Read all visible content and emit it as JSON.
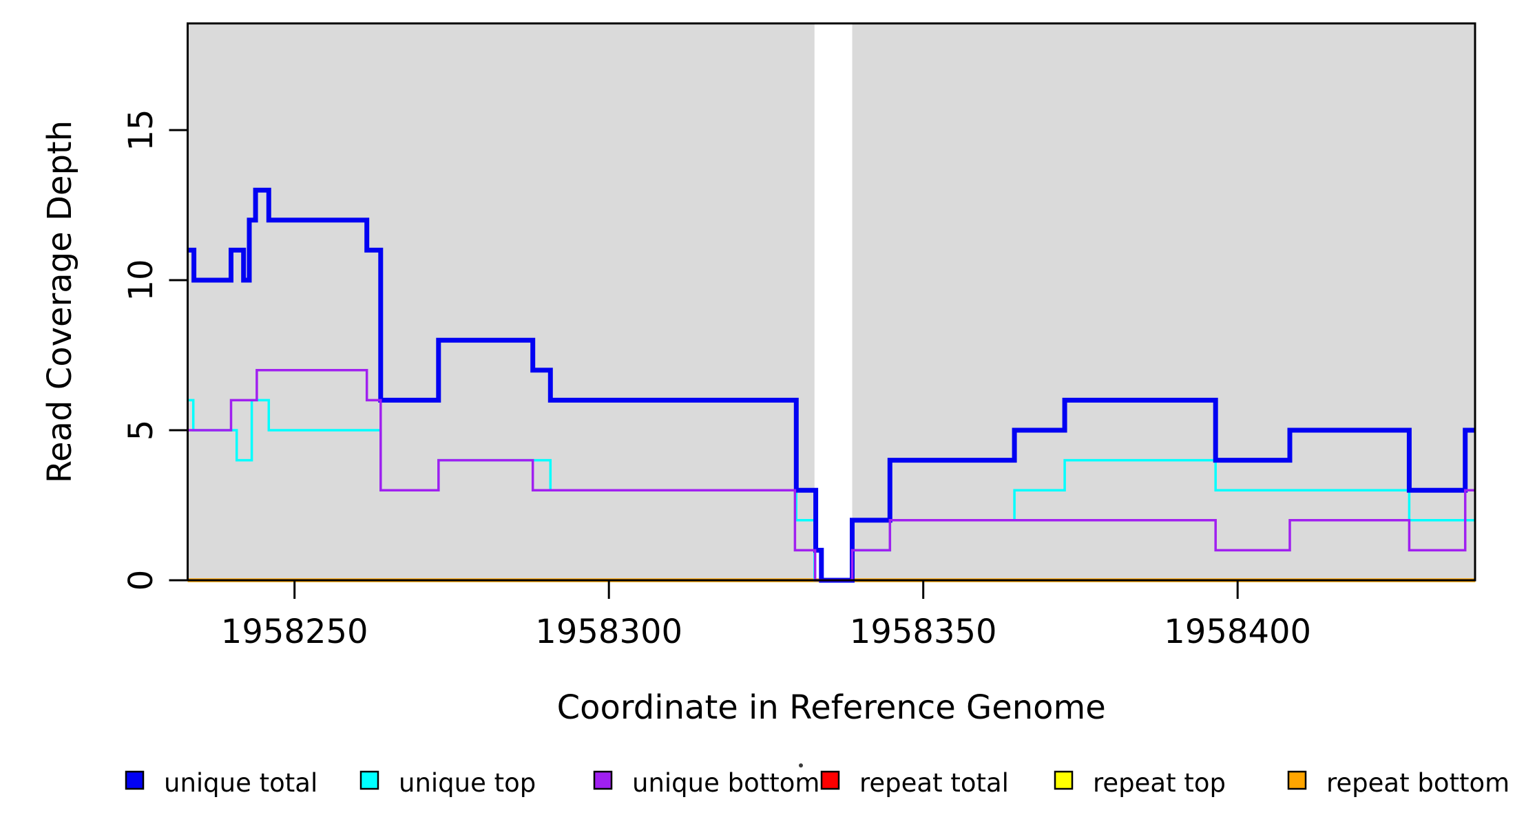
{
  "figure": {
    "x_axis": {
      "label": "Coordinate in Reference Genome",
      "ticks": [
        1958250,
        1958300,
        1958350,
        1958400
      ]
    },
    "y_axis": {
      "label": "Read Coverage Depth",
      "ticks": [
        0,
        5,
        10,
        15
      ]
    },
    "legend": {
      "items": [
        {
          "label": "unique total",
          "color": "#0202f2"
        },
        {
          "label": "unique top",
          "color": "#00ffff"
        },
        {
          "label": "unique bottom",
          "color": "#a020f0"
        },
        {
          "label": "repeat total",
          "color": "#ff0000"
        },
        {
          "label": "repeat top",
          "color": "#ffff00"
        },
        {
          "label": "repeat bottom",
          "color": "#ffa500"
        }
      ]
    },
    "colors": {
      "plot_background": "#dadada",
      "gap_band": "#ffffff",
      "axis": "#000000"
    }
  },
  "chart_data": {
    "type": "line",
    "subtype": "step-coverage",
    "title": "",
    "xlabel": "Coordinate in Reference Genome",
    "ylabel": "Read Coverage Depth",
    "x_ticks": [
      1958250,
      1958300,
      1958350,
      1958400
    ],
    "y_ticks": [
      0,
      5,
      10,
      15
    ],
    "x_range": [
      1958233,
      1958437.8
    ],
    "y_range": [
      0,
      18.5
    ],
    "grid": false,
    "legend_position": "bottom",
    "background_regions": [
      [
        1958233,
        1958332.7
      ],
      [
        1958338.7,
        1958437.8
      ]
    ],
    "gap_region": [
      1958332.7,
      1958338.7
    ],
    "series": [
      {
        "name": "unique total",
        "color": "#0202f2",
        "width": 7,
        "steps": [
          [
            1958233,
            11
          ],
          [
            1958234,
            10
          ],
          [
            1958239.9,
            11
          ],
          [
            1958241.9,
            10
          ],
          [
            1958242.8,
            12
          ],
          [
            1958243.8,
            13
          ],
          [
            1958245.9,
            12
          ],
          [
            1958261.5,
            11
          ],
          [
            1958263.7,
            6
          ],
          [
            1958272.9,
            8
          ],
          [
            1958287.9,
            7
          ],
          [
            1958290.7,
            6
          ],
          [
            1958329.8,
            3
          ],
          [
            1958332.9,
            1
          ],
          [
            1958333.8,
            0
          ],
          [
            1958338.7,
            2
          ],
          [
            1958344.7,
            4
          ],
          [
            1958364.5,
            5
          ],
          [
            1958372.5,
            6
          ],
          [
            1958396.5,
            4
          ],
          [
            1958408.3,
            5
          ],
          [
            1958427.3,
            3
          ],
          [
            1958436.2,
            5
          ]
        ],
        "end": 1958437.8
      },
      {
        "name": "unique top",
        "color": "#00ffff",
        "width": 3.5,
        "steps": [
          [
            1958233,
            6
          ],
          [
            1958233.9,
            5
          ],
          [
            1958240.8,
            4
          ],
          [
            1958243.2,
            6
          ],
          [
            1958245.9,
            5
          ],
          [
            1958263.7,
            3
          ],
          [
            1958272.9,
            4
          ],
          [
            1958290.7,
            3
          ],
          [
            1958329.8,
            2
          ],
          [
            1958332.7,
            0
          ],
          [
            1958338.7,
            1
          ],
          [
            1958344.7,
            2
          ],
          [
            1958364.5,
            3
          ],
          [
            1958372.5,
            4
          ],
          [
            1958396.5,
            3
          ],
          [
            1958427.3,
            2
          ]
        ],
        "end": 1958437.8
      },
      {
        "name": "unique bottom",
        "color": "#a020f0",
        "width": 3.5,
        "steps": [
          [
            1958233,
            5
          ],
          [
            1958239.9,
            6
          ],
          [
            1958244,
            7
          ],
          [
            1958261.5,
            6
          ],
          [
            1958263.7,
            3
          ],
          [
            1958272.9,
            4
          ],
          [
            1958287.9,
            3
          ],
          [
            1958329.6,
            1
          ],
          [
            1958332.8,
            0
          ],
          [
            1958338.7,
            1
          ],
          [
            1958344.7,
            2
          ],
          [
            1958396.5,
            1
          ],
          [
            1958408.3,
            2
          ],
          [
            1958427.3,
            1
          ],
          [
            1958436.2,
            3
          ]
        ],
        "end": 1958437.8
      },
      {
        "name": "repeat total",
        "color": "#ff0000",
        "width": 3,
        "steps": [
          [
            1958233,
            0
          ]
        ],
        "end": 1958437.8
      },
      {
        "name": "repeat top",
        "color": "#ffff00",
        "width": 3,
        "steps": [
          [
            1958233,
            0
          ]
        ],
        "end": 1958437.8
      },
      {
        "name": "repeat bottom",
        "color": "#ffa500",
        "width": 5.5,
        "steps": [
          [
            1958233,
            0
          ]
        ],
        "end": 1958437.8
      }
    ]
  }
}
